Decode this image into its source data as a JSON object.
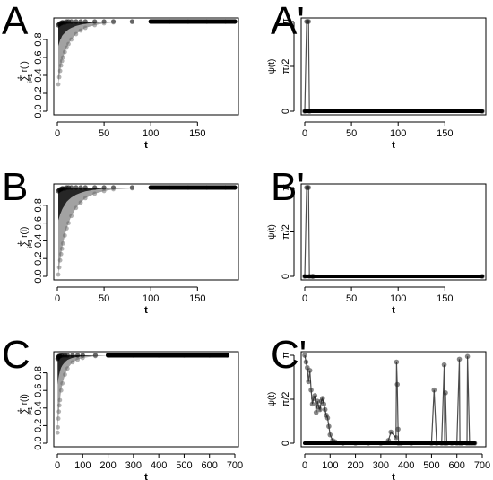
{
  "chart_data": [
    {
      "id": "A",
      "panel_label": "A",
      "type": "scatter",
      "xlabel": "t",
      "ylabel_parts": [
        "t",
        "∑",
        "i=1",
        "r(i)"
      ],
      "xlim": [
        0,
        190
      ],
      "ylim": [
        0,
        1.0
      ],
      "xticks": [
        0,
        50,
        100,
        150
      ],
      "yticks": [
        0,
        0.2,
        0.4,
        0.6,
        0.8
      ],
      "ytick_labels": [
        "0.0",
        "0.2",
        "0.4",
        "0.6",
        "0.8"
      ],
      "series": [
        {
          "x": [
            1,
            2,
            3,
            4,
            5,
            6,
            8,
            10,
            12,
            15,
            20,
            25,
            30,
            40,
            50,
            60,
            80,
            100,
            120,
            140,
            160,
            180,
            190
          ],
          "y_min": [
            0.3,
            0.38,
            0.45,
            0.51,
            0.56,
            0.6,
            0.66,
            0.71,
            0.75,
            0.8,
            0.86,
            0.9,
            0.93,
            0.96,
            0.98,
            0.99,
            0.995,
            1.0,
            1.0,
            1.0,
            1.0,
            1.0,
            1.0
          ],
          "y_max": [
            0.96,
            0.97,
            0.98,
            0.98,
            0.99,
            0.99,
            0.99,
            1.0,
            1.0,
            1.0,
            1.0,
            1.0,
            1.0,
            1.0,
            1.0,
            1.0,
            1.0,
            1.0,
            1.0,
            1.0,
            1.0,
            1.0,
            1.0
          ]
        }
      ]
    },
    {
      "id": "A2",
      "panel_label": "A'",
      "type": "line",
      "xlabel": "t",
      "ylabel": "ψ(t)",
      "xlim": [
        0,
        190
      ],
      "ylim": [
        0,
        3.1416
      ],
      "xticks": [
        0,
        50,
        100,
        150
      ],
      "yticks": [
        0,
        1.5708,
        3.1416
      ],
      "ytick_labels": [
        "0",
        "π/2",
        "π"
      ],
      "series": [
        {
          "x": [
            0,
            2,
            3,
            4,
            5,
            190
          ],
          "y": [
            0,
            3.1416,
            3.1416,
            3.1416,
            0,
            0
          ]
        }
      ]
    },
    {
      "id": "B",
      "panel_label": "B",
      "type": "scatter",
      "xlabel": "t",
      "ylabel_parts": [
        "t",
        "∑",
        "i=1",
        "r(i)"
      ],
      "xlim": [
        0,
        190
      ],
      "ylim": [
        0,
        1.0
      ],
      "xticks": [
        0,
        50,
        100,
        150
      ],
      "yticks": [
        0,
        0.2,
        0.4,
        0.6,
        0.8
      ],
      "ytick_labels": [
        "0.0",
        "0.2",
        "0.4",
        "0.6",
        "0.8"
      ],
      "series": [
        {
          "x": [
            1,
            2,
            3,
            4,
            5,
            6,
            8,
            10,
            12,
            15,
            20,
            25,
            30,
            40,
            50,
            60,
            80,
            100,
            120,
            140,
            160,
            180,
            190
          ],
          "y_min": [
            0.02,
            0.1,
            0.18,
            0.25,
            0.31,
            0.37,
            0.46,
            0.54,
            0.6,
            0.68,
            0.77,
            0.83,
            0.88,
            0.93,
            0.96,
            0.98,
            0.99,
            1.0,
            1.0,
            1.0,
            1.0,
            1.0,
            1.0
          ],
          "y_max": [
            0.96,
            0.97,
            0.98,
            0.98,
            0.99,
            0.99,
            0.99,
            1.0,
            1.0,
            1.0,
            1.0,
            1.0,
            1.0,
            1.0,
            1.0,
            1.0,
            1.0,
            1.0,
            1.0,
            1.0,
            1.0,
            1.0,
            1.0
          ]
        }
      ]
    },
    {
      "id": "B2",
      "panel_label": "B'",
      "type": "line",
      "xlabel": "t",
      "ylabel": "ψ(t)",
      "xlim": [
        0,
        190
      ],
      "ylim": [
        0,
        3.1416
      ],
      "xticks": [
        0,
        50,
        100,
        150
      ],
      "yticks": [
        0,
        1.5708,
        3.1416
      ],
      "ytick_labels": [
        "0",
        "π/2",
        "π"
      ],
      "series": [
        {
          "x": [
            0,
            2,
            3,
            4,
            5,
            8,
            9,
            190
          ],
          "y": [
            0,
            3.1416,
            3.1416,
            3.1416,
            0,
            0,
            0,
            0
          ]
        }
      ]
    },
    {
      "id": "C",
      "panel_label": "C",
      "type": "scatter",
      "xlabel": "t",
      "ylabel_parts": [
        "t",
        "∑",
        "i=1",
        "r(i)"
      ],
      "xlim": [
        0,
        700
      ],
      "ylim": [
        0,
        1.0
      ],
      "xticks": [
        0,
        100,
        200,
        300,
        400,
        500,
        600,
        700
      ],
      "yticks": [
        0,
        0.2,
        0.4,
        0.6,
        0.8
      ],
      "ytick_labels": [
        "0.0",
        "0.2",
        "0.4",
        "0.6",
        "0.8"
      ],
      "series": [
        {
          "x": [
            1,
            2,
            4,
            6,
            8,
            10,
            15,
            20,
            30,
            40,
            60,
            80,
            100,
            150,
            200,
            300,
            400,
            500,
            600,
            670
          ],
          "y_min": [
            0.12,
            0.18,
            0.28,
            0.36,
            0.43,
            0.49,
            0.6,
            0.68,
            0.78,
            0.85,
            0.92,
            0.95,
            0.97,
            0.99,
            1.0,
            1.0,
            1.0,
            1.0,
            1.0,
            1.0
          ],
          "y_max": [
            0.96,
            0.97,
            0.98,
            0.99,
            0.99,
            0.99,
            1.0,
            1.0,
            1.0,
            1.0,
            1.0,
            1.0,
            1.0,
            1.0,
            1.0,
            1.0,
            1.0,
            1.0,
            1.0,
            1.0
          ]
        }
      ]
    },
    {
      "id": "C2",
      "panel_label": "C'",
      "type": "line",
      "xlabel": "t",
      "ylabel": "ψ(t)",
      "xlim": [
        0,
        700
      ],
      "ylim": [
        0,
        3.1416
      ],
      "xticks": [
        0,
        100,
        200,
        300,
        400,
        500,
        600,
        700
      ],
      "yticks": [
        0,
        1.5708,
        3.1416
      ],
      "ytick_labels": [
        "0",
        "π/2",
        "π"
      ],
      "series": [
        {
          "x": [
            0,
            5,
            10,
            15,
            20,
            25,
            30,
            35,
            40,
            45,
            50,
            55,
            60,
            65,
            70,
            75,
            80,
            85,
            90,
            95,
            100,
            110,
            120,
            150,
            200,
            250,
            300,
            330,
            340,
            360,
            362,
            365,
            368,
            370,
            380,
            420,
            500,
            510,
            520,
            540,
            550,
            552,
            555,
            560,
            580,
            600,
            610,
            612,
            620,
            640,
            642,
            650,
            660,
            670
          ],
          "y": [
            3.14,
            2.9,
            2.7,
            2.2,
            2.6,
            1.9,
            1.4,
            1.6,
            1.7,
            1.1,
            1.5,
            1.3,
            1.2,
            1.5,
            1.6,
            1.4,
            1.2,
            1.0,
            0.9,
            0.6,
            0.3,
            0.1,
            0.05,
            0.0,
            0.0,
            0.0,
            0.0,
            0.1,
            0.4,
            0.2,
            2.9,
            2.1,
            0.5,
            0.0,
            0.0,
            0.0,
            0.0,
            1.9,
            0.0,
            0.0,
            2.8,
            0.0,
            1.8,
            0.0,
            0.0,
            0.0,
            3.0,
            0.0,
            0.0,
            0.0,
            3.1,
            0.0,
            0.0,
            0.0
          ]
        }
      ]
    }
  ]
}
